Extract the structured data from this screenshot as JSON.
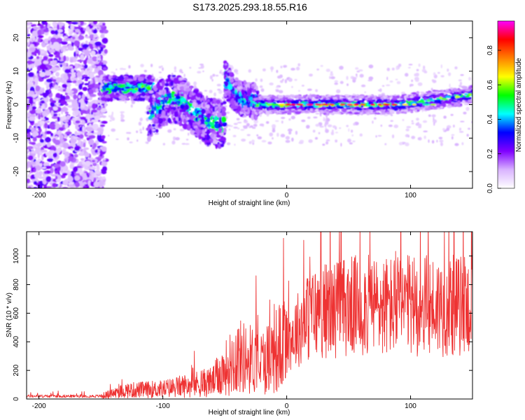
{
  "title": "S173.2025.293.18.55.R16",
  "chart_data": [
    {
      "type": "heatmap",
      "xlabel": "Height of straight line (km)",
      "ylabel": "Frequency (Hz)",
      "xlim": [
        -210,
        150
      ],
      "ylim": [
        -25,
        25
      ],
      "xticks": [
        -200,
        -100,
        0,
        100
      ],
      "yticks": [
        -20,
        -10,
        0,
        10,
        20
      ],
      "colorbar": {
        "label": "Normalized spectral amplitude",
        "range": [
          0,
          0.97
        ],
        "ticks": [
          0.0,
          0.2,
          0.4,
          0.6,
          0.8
        ],
        "colors": [
          "#ffffff",
          "#d9b3ff",
          "#8000ff",
          "#0000ff",
          "#00ffff",
          "#00ff00",
          "#ffff00",
          "#ff8000",
          "#ff0000",
          "#ff00ff"
        ]
      },
      "features": [
        {
          "name": "diffuse noise",
          "x_range": [
            -210,
            -145
          ],
          "f_range": [
            -25,
            25
          ]
        },
        {
          "name": "band",
          "x_range": [
            -148,
            -110
          ],
          "f_center": 5
        },
        {
          "name": "dip",
          "x_range": [
            -110,
            -50
          ],
          "f_center": -3
        },
        {
          "name": "rise",
          "x_range": [
            -50,
            -25
          ],
          "f_center": 5
        },
        {
          "name": "carrier line",
          "x_range": [
            -25,
            150
          ],
          "f_center": 0
        }
      ]
    },
    {
      "type": "line",
      "xlabel": "Height of straight line (km)",
      "ylabel": "SNR (10 * v/v)",
      "xlim": [
        -210,
        150
      ],
      "ylim": [
        0,
        1170
      ],
      "xticks": [
        -200,
        -100,
        0,
        100
      ],
      "yticks": [
        0,
        200,
        400,
        600,
        800,
        1000
      ],
      "color": "#ee3333",
      "series_envelope": [
        {
          "x": -210,
          "y": 20
        },
        {
          "x": -150,
          "y": 20
        },
        {
          "x": -130,
          "y": 60
        },
        {
          "x": -100,
          "y": 70
        },
        {
          "x": -60,
          "y": 120
        },
        {
          "x": -40,
          "y": 300
        },
        {
          "x": -20,
          "y": 260
        },
        {
          "x": 0,
          "y": 400
        },
        {
          "x": 20,
          "y": 600
        },
        {
          "x": 50,
          "y": 650
        },
        {
          "x": 100,
          "y": 650
        },
        {
          "x": 150,
          "y": 650
        }
      ]
    }
  ]
}
